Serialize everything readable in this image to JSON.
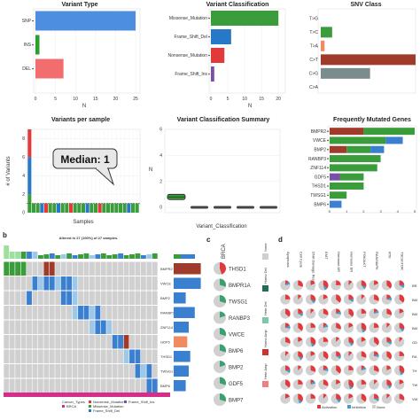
{
  "colors": {
    "snp": "#4e8ee0",
    "ins": "#2ca02c",
    "del": "#f26d6d",
    "missense": "#3a9c3a",
    "frameshift_del": "#2878c8",
    "nonsense": "#e23a3a",
    "frameshift_ins": "#7a4fa8",
    "c": "#3a9c3a",
    "r": "#a03a2a",
    "g": "#7b8c8c",
    "o": "#f08a60",
    "b": "#3a7fd0",
    "p": "#7a4fa8",
    "cell": "#d0d0d0",
    "cancer": "#d62d8a"
  },
  "chart_data": [
    {
      "type": "bar",
      "title": "Variant Type",
      "orientation": "horizontal",
      "categories": [
        "SNP",
        "INS",
        "DEL"
      ],
      "values": [
        25,
        1,
        7
      ],
      "color_keys": [
        "snp",
        "ins",
        "del"
      ],
      "xticks": [
        "0",
        "5",
        "10",
        "15",
        "20",
        "25"
      ],
      "xlim": [
        0,
        25
      ],
      "xlabel": "N"
    },
    {
      "type": "bar",
      "title": "Variant Classification",
      "orientation": "horizontal",
      "categories": [
        "Missense_Mutation",
        "Frame_Shift_Del",
        "Nonsense_Mutation",
        "Frame_Shift_Ins"
      ],
      "values": [
        20,
        6,
        4,
        1
      ],
      "color_keys": [
        "missense",
        "frameshift_del",
        "nonsense",
        "frameshift_ins"
      ],
      "xticks": [
        "0",
        "5",
        "10",
        "15",
        "20"
      ],
      "xlim": [
        0,
        21
      ],
      "xlabel": "N"
    },
    {
      "type": "bar",
      "title": "SNV Class",
      "orientation": "horizontal",
      "categories": [
        "T>G",
        "T>C",
        "T>A",
        "C>T",
        "C>G",
        "C>A"
      ],
      "values": [
        0,
        3,
        1,
        25,
        13,
        0
      ],
      "color_keys": [
        "c",
        "c",
        "o",
        "r",
        "g",
        "c"
      ],
      "xlim": [
        0,
        25
      ],
      "xlabel": ""
    },
    {
      "type": "bar",
      "title": "Variants per sample",
      "stacked": true,
      "n_samples": 27,
      "samples": [
        {
          "missense": 2,
          "frameshift_del": 4,
          "nonsense": 3
        },
        {
          "missense": 1
        },
        {
          "missense": 1
        },
        {
          "frameshift_del": 1
        },
        {
          "nonsense": 1
        },
        {
          "missense": 1
        },
        {
          "missense": 1
        },
        {
          "frameshift_del": 1
        },
        {
          "missense": 1
        },
        {
          "missense": 1
        },
        {
          "nonsense": 1
        },
        {
          "missense": 1
        },
        {
          "missense": 1
        },
        {
          "missense": 1
        },
        {
          "frameshift_del": 1
        },
        {
          "missense": 1
        },
        {
          "missense": 1
        },
        {
          "nonsense": 1
        },
        {
          "missense": 1
        },
        {
          "missense": 1
        },
        {
          "missense": 1
        },
        {
          "missense": 1
        },
        {
          "missense": 1
        },
        {
          "missense": 1
        },
        {
          "frameshift_del": 1
        },
        {
          "missense": 1
        },
        {
          "missense": 1
        }
      ],
      "yticks": [
        "0",
        "2",
        "4",
        "6",
        "8"
      ],
      "ylim": [
        0,
        9
      ],
      "ylabel": "# of Variants",
      "xlabel": "Samples",
      "annotation": "Median: 1"
    },
    {
      "type": "box",
      "title": "Variant Classification Summary",
      "boxes": [
        {
          "q1": 0.6,
          "median": 0.8,
          "q3": 1.0,
          "color_key": "missense"
        },
        {
          "q1": 0,
          "median": 0,
          "q3": 0
        },
        {
          "q1": 0,
          "median": 0,
          "q3": 0
        },
        {
          "q1": 0,
          "median": 0,
          "q3": 0
        },
        {
          "q1": 0,
          "median": 0,
          "q3": 0
        }
      ],
      "yticks": [
        "0",
        "2",
        "4",
        "6"
      ],
      "ylim": [
        0,
        6
      ],
      "ylabel": "N",
      "xlabel": "Variant_Classification"
    },
    {
      "type": "bar",
      "title": "Frequently Mutated Genes",
      "stacked": true,
      "orientation": "horizontal",
      "genes": [
        {
          "name": "BMPR2",
          "segs": [
            [
              "r",
              2
            ],
            [
              "c",
              3
            ]
          ]
        },
        {
          "name": "VWCE",
          "segs": [
            [
              "c",
              3.3
            ],
            [
              "b",
              1
            ]
          ]
        },
        {
          "name": "BMP2",
          "segs": [
            [
              "r",
              1
            ],
            [
              "c",
              1.4
            ],
            [
              "b",
              0.8
            ]
          ]
        },
        {
          "name": "RANBP3",
          "segs": [
            [
              "c",
              3
            ]
          ]
        },
        {
          "name": "ZNF114",
          "segs": [
            [
              "c",
              2.8
            ]
          ]
        },
        {
          "name": "GDF5",
          "segs": [
            [
              "p",
              0.6
            ],
            [
              "c",
              1.4
            ]
          ]
        },
        {
          "name": "THSD1",
          "segs": [
            [
              "c",
              2
            ]
          ]
        },
        {
          "name": "TWSG1",
          "segs": [
            [
              "c",
              1
            ]
          ]
        },
        {
          "name": "BMP6",
          "segs": [
            [
              "b",
              0.7
            ]
          ]
        }
      ],
      "xticks": [
        "0",
        "1",
        "2",
        "3",
        "4",
        "5"
      ],
      "xlim": [
        0,
        5
      ]
    },
    {
      "type": "heatmap",
      "title": "Altered in 27 (100%) of 27 samples.",
      "genes": [
        "BMPR2",
        "VWCE",
        "BMP2",
        "RANBP3",
        "ZNF114",
        "GDF5",
        "THSD1",
        "TWSG1",
        "BMP6"
      ],
      "n_cols": 27,
      "right_bars": [
        [
          "r",
          0.9
        ],
        [
          "b",
          0.9
        ],
        [
          "b",
          0.4
        ],
        [
          "b",
          0.7
        ],
        [
          "b",
          0.5
        ],
        [
          "o",
          0.45
        ],
        [
          "b",
          0.55
        ],
        [
          "b",
          0.5
        ],
        [
          "b",
          0.4
        ]
      ],
      "legend": {
        "heading": "Cancer_Types",
        "cancer": "BRCA",
        "items": [
          "Nonsense_Mutation",
          "Frame_Shift_Ins",
          "Missense_Mutation",
          "Frame_Shift_Del"
        ]
      }
    },
    {
      "type": "table",
      "panel_label": "c",
      "cancer": "BRCA",
      "genes": [
        "THSD1",
        "BMPR1A",
        "TWSG1",
        "RANBP3",
        "VWCE",
        "BMP6",
        "BMP2",
        "GDF5",
        "BMP7"
      ],
      "legend": [
        "None",
        "Homo Del",
        "Hete Del",
        "Homo Amp",
        "Hete Amp"
      ]
    },
    {
      "type": "table",
      "panel_label": "d",
      "pathways": [
        "Apoptosis",
        "Cell Cycle",
        "DNA Damage Response",
        "EMT",
        "Hormone AR",
        "Hormone ER",
        "PI3K/AKT",
        "RAS/MAPK",
        "RTK",
        "TSC/mTOR"
      ],
      "row_labels": [
        "BR",
        "BM",
        "BM",
        "BM",
        "GD",
        "RA",
        "TH",
        "TW",
        "VW"
      ],
      "legend": [
        "Activation",
        "Inhibition",
        "None"
      ]
    }
  ]
}
